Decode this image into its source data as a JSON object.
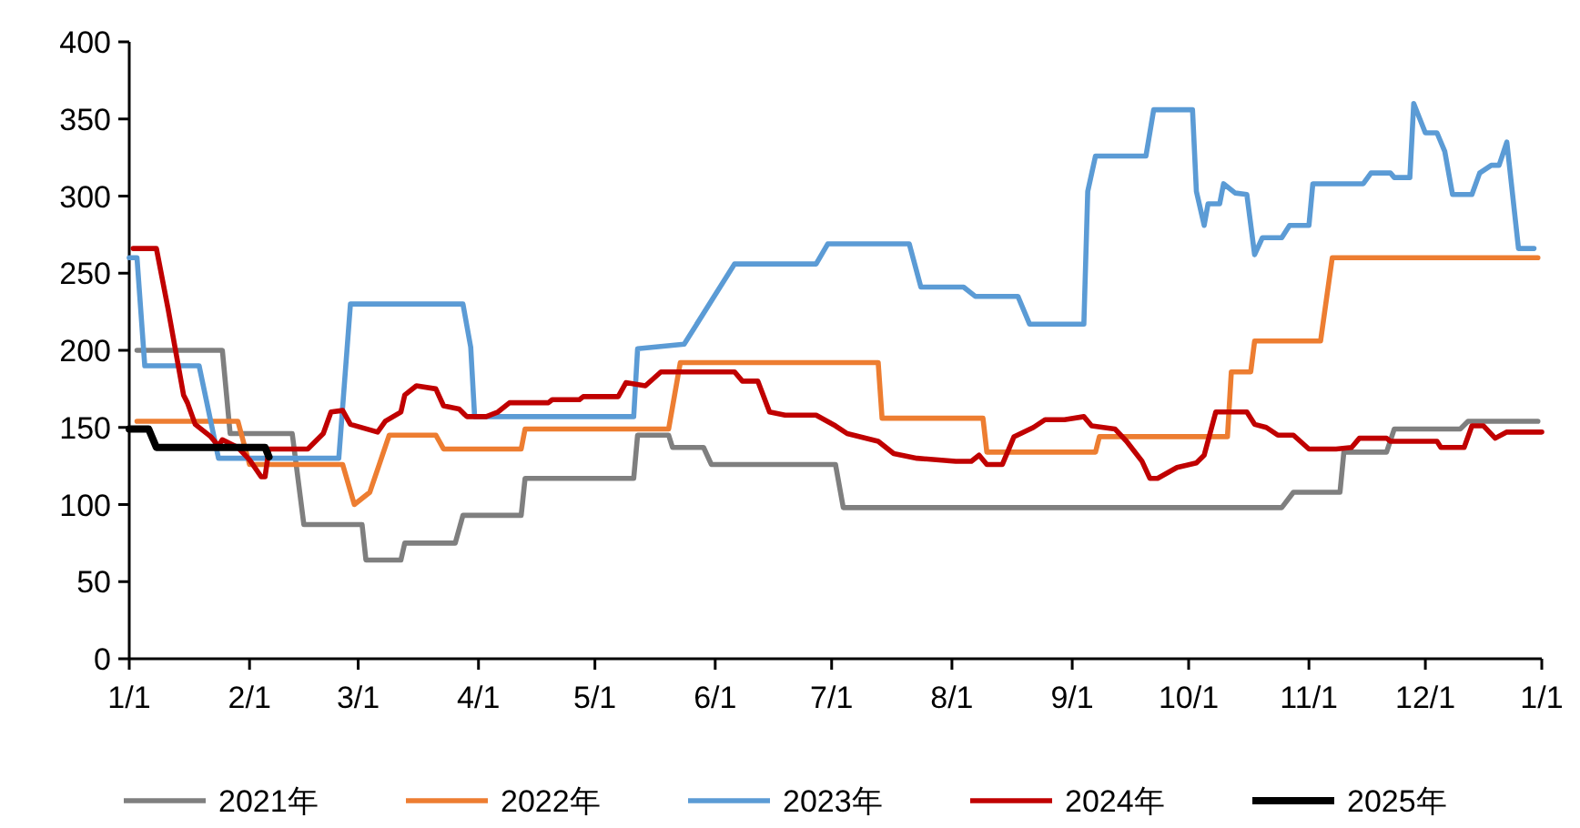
{
  "chart_data": {
    "type": "line",
    "legend": "bottom",
    "xlim": [
      "--01-01",
      "--12-31"
    ],
    "ylim": [
      0,
      400
    ],
    "xticks": [
      {
        "value": "--01-01",
        "label": "1/1"
      },
      {
        "value": "--02-01",
        "label": "2/1"
      },
      {
        "value": "--03-01",
        "label": "3/1"
      },
      {
        "value": "--04-01",
        "label": "4/1"
      },
      {
        "value": "--05-01",
        "label": "5/1"
      },
      {
        "value": "--06-01",
        "label": "6/1"
      },
      {
        "value": "--07-01",
        "label": "7/1"
      },
      {
        "value": "--08-01",
        "label": "8/1"
      },
      {
        "value": "--09-01",
        "label": "9/1"
      },
      {
        "value": "--10-01",
        "label": "10/1"
      },
      {
        "value": "--11-01",
        "label": "11/1"
      },
      {
        "value": "--12-01",
        "label": "12/1"
      },
      {
        "value": "--12-31",
        "label": "1/1"
      }
    ],
    "yticks": [
      0,
      50,
      100,
      150,
      200,
      250,
      300,
      350,
      400
    ],
    "series": [
      {
        "name": "2021年",
        "color": "#7f7f7f",
        "x": [
          "--01-03",
          "--01-25",
          "--01-27",
          "--02-12",
          "--02-15",
          "--03-02",
          "--03-03",
          "--03-12",
          "--03-13",
          "--03-26",
          "--03-28",
          "--04-12",
          "--04-13",
          "--05-11",
          "--05-12",
          "--05-20",
          "--05-21",
          "--05-29",
          "--05-31",
          "--07-02",
          "--07-04",
          "--10-25",
          "--10-28",
          "--11-09",
          "--11-10",
          "--11-21",
          "--11-23",
          "--12-10",
          "--12-12",
          "--12-30"
        ],
        "values": [
          200,
          200,
          146,
          146,
          87,
          87,
          64,
          64,
          75,
          75,
          93,
          93,
          117,
          117,
          145,
          145,
          137,
          137,
          126,
          126,
          98,
          98,
          108,
          108,
          134,
          134,
          149,
          149,
          154,
          154
        ]
      },
      {
        "name": "2022年",
        "color": "#ed7d31",
        "x": [
          "--01-03",
          "--01-29",
          "--02-01",
          "--02-25",
          "--02-28",
          "--03-04",
          "--03-09",
          "--03-21",
          "--03-23",
          "--04-12",
          "--04-13",
          "--05-20",
          "--05-23",
          "--07-13",
          "--07-14",
          "--08-09",
          "--08-10",
          "--09-07",
          "--09-08",
          "--10-11",
          "--10-12",
          "--10-17",
          "--10-18",
          "--11-04",
          "--11-07",
          "--12-30"
        ],
        "values": [
          154,
          154,
          126,
          126,
          100,
          108,
          145,
          145,
          136,
          136,
          149,
          149,
          192,
          192,
          156,
          156,
          134,
          134,
          144,
          144,
          186,
          186,
          206,
          206,
          260,
          260
        ]
      },
      {
        "name": "2023年",
        "color": "#5b9bd5",
        "x": [
          "--01-01",
          "--01-03",
          "--01-05",
          "--01-19",
          "--01-24",
          "--02-24",
          "--02-27",
          "--03-28",
          "--03-30",
          "--03-31",
          "--05-11",
          "--05-12",
          "--05-24",
          "--06-06",
          "--06-27",
          "--06-30",
          "--07-21",
          "--07-24",
          "--08-04",
          "--08-07",
          "--08-18",
          "--08-21",
          "--09-04",
          "--09-05",
          "--09-07",
          "--09-20",
          "--09-22",
          "--10-02",
          "--10-03",
          "--10-05",
          "--10-06",
          "--10-09",
          "--10-10",
          "--10-13",
          "--10-16",
          "--10-18",
          "--10-20",
          "--10-25",
          "--10-27",
          "--11-01",
          "--11-02",
          "--11-15",
          "--11-17",
          "--11-22",
          "--11-23",
          "--11-27",
          "--11-28",
          "--12-01",
          "--12-04",
          "--12-06",
          "--12-08",
          "--12-13",
          "--12-15",
          "--12-18",
          "--12-20",
          "--12-22",
          "--12-25",
          "--12-29"
        ],
        "values": [
          260,
          260,
          190,
          190,
          130,
          130,
          230,
          230,
          202,
          157,
          157,
          201,
          204,
          256,
          256,
          269,
          269,
          241,
          241,
          235,
          235,
          217,
          217,
          303,
          326,
          326,
          356,
          356,
          303,
          281,
          295,
          295,
          308,
          302,
          301,
          262,
          273,
          273,
          281,
          281,
          308,
          308,
          315,
          315,
          312,
          312,
          360,
          341,
          341,
          329,
          301,
          301,
          315,
          320,
          320,
          335,
          266,
          266
        ]
      },
      {
        "name": "2024年",
        "color": "#c00000",
        "x": [
          "--01-02",
          "--01-08",
          "--01-11",
          "--01-15",
          "--01-16",
          "--01-18",
          "--01-22",
          "--01-24",
          "--01-25",
          "--01-29",
          "--02-01",
          "--02-04",
          "--02-05",
          "--02-06",
          "--02-16",
          "--02-20",
          "--02-22",
          "--02-25",
          "--02-27",
          "--03-06",
          "--03-08",
          "--03-12",
          "--03-13",
          "--03-16",
          "--03-21",
          "--03-23",
          "--03-27",
          "--03-29",
          "--04-03",
          "--04-06",
          "--04-09",
          "--04-19",
          "--04-20",
          "--04-27",
          "--04-28",
          "--05-07",
          "--05-09",
          "--05-14",
          "--05-18",
          "--06-06",
          "--06-08",
          "--06-12",
          "--06-15",
          "--06-19",
          "--06-27",
          "--07-02",
          "--07-05",
          "--07-13",
          "--07-17",
          "--07-23",
          "--08-02",
          "--08-06",
          "--08-08",
          "--08-10",
          "--08-14",
          "--08-17",
          "--08-22",
          "--08-25",
          "--08-30",
          "--09-04",
          "--09-06",
          "--09-12",
          "--09-15",
          "--09-19",
          "--09-21",
          "--09-23",
          "--09-28",
          "--10-03",
          "--10-05",
          "--10-08",
          "--10-16",
          "--10-18",
          "--10-21",
          "--10-24",
          "--10-28",
          "--11-01",
          "--11-08",
          "--11-12",
          "--11-14",
          "--11-21",
          "--11-22",
          "--12-04",
          "--12-05",
          "--12-11",
          "--12-13",
          "--12-16",
          "--12-19",
          "--12-22",
          "--12-31"
        ],
        "values": [
          266,
          266,
          227,
          171,
          166,
          152,
          144,
          138,
          142,
          137,
          129,
          118,
          118,
          136,
          136,
          146,
          160,
          161,
          152,
          147,
          154,
          160,
          171,
          177,
          175,
          164,
          162,
          157,
          157,
          160,
          166,
          166,
          168,
          168,
          170,
          170,
          179,
          177,
          186,
          186,
          180,
          180,
          160,
          158,
          158,
          151,
          146,
          141,
          133,
          130,
          128,
          128,
          132,
          126,
          126,
          144,
          150,
          155,
          155,
          157,
          151,
          149,
          141,
          128,
          117,
          117,
          124,
          127,
          132,
          160,
          160,
          152,
          150,
          145,
          145,
          136,
          136,
          137,
          143,
          143,
          141,
          141,
          137,
          137,
          151,
          151,
          143,
          147,
          147
        ]
      },
      {
        "name": "2025年",
        "color": "#000000",
        "x": [
          "--01-01",
          "--01-06",
          "--01-08",
          "--02-05",
          "--02-06"
        ],
        "values": [
          149,
          149,
          137,
          137,
          131
        ]
      }
    ]
  }
}
